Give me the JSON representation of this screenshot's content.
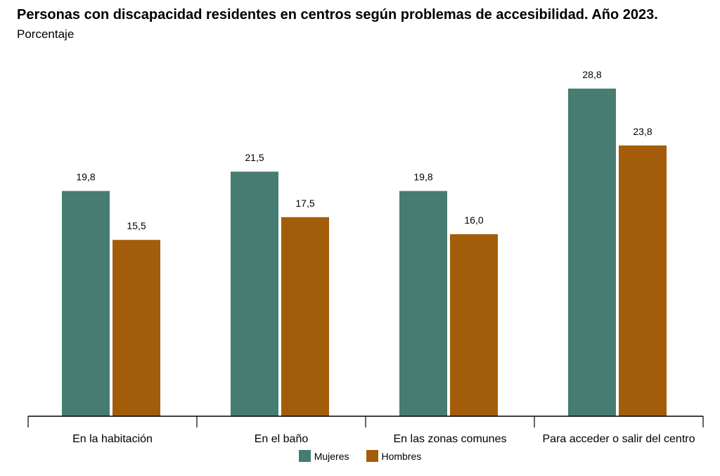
{
  "title": "Personas con discapacidad residentes en centros según problemas de accesibilidad. Año 2023.",
  "subtitle": "Porcentaje",
  "chart_data": {
    "type": "bar",
    "categories": [
      "En la habitación",
      "En el baño",
      "En las zonas comunes",
      "Para acceder o salir del centro"
    ],
    "series": [
      {
        "name": "Mujeres",
        "values": [
          19.8,
          21.5,
          19.8,
          28.8
        ],
        "labels": [
          "19,8",
          "21,5",
          "19,8",
          "28,8"
        ],
        "color": "#467c72"
      },
      {
        "name": "Hombres",
        "values": [
          15.5,
          17.5,
          16.0,
          23.8
        ],
        "labels": [
          "15,5",
          "17,5",
          "16,0",
          "23,8"
        ],
        "color": "#a35d0a"
      }
    ],
    "ylim": [
      0,
      30
    ],
    "grid": false,
    "legend_position": "bottom-center"
  }
}
